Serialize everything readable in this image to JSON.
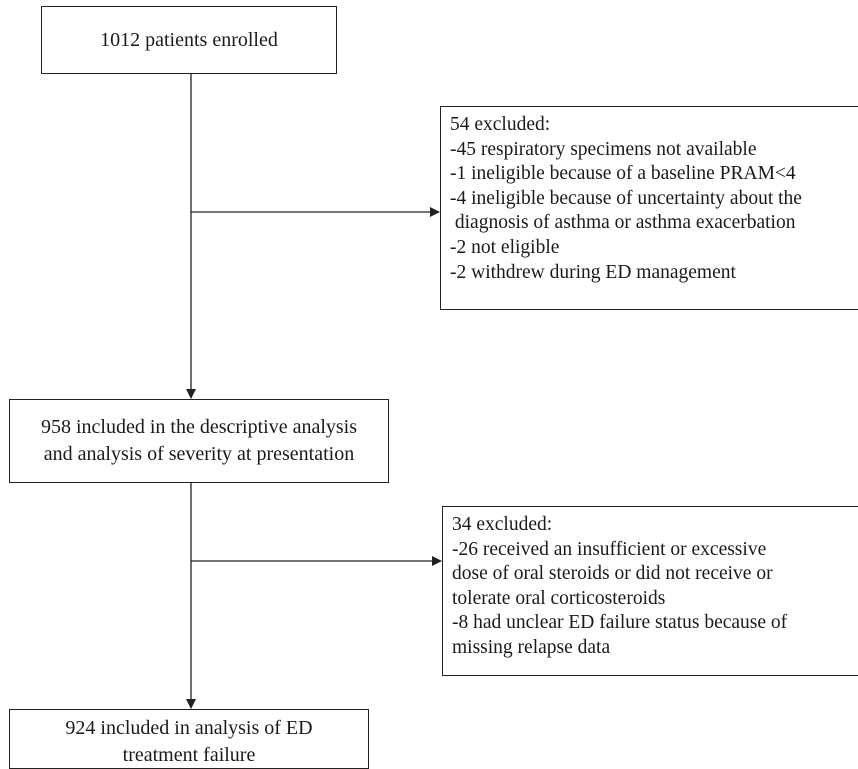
{
  "boxes": {
    "enrolled": {
      "lines": [
        "1012 patients enrolled"
      ]
    },
    "excluded_first": {
      "lines": [
        "54 excluded:",
        "-45 respiratory specimens not available",
        "-1 ineligible because of a baseline PRAM<4",
        "-4 ineligible because of uncertainty about the",
        " diagnosis of asthma or asthma exacerbation",
        "-2 not eligible",
        "-2 withdrew during ED management"
      ]
    },
    "descriptive": {
      "lines": [
        "958 included in the descriptive analysis",
        "and analysis of severity at presentation"
      ]
    },
    "excluded_second": {
      "lines": [
        "34 excluded:",
        "-26 received an insufficient or excessive",
        "dose of oral steroids or did not receive or",
        "tolerate oral corticosteroids",
        "-8 had unclear ED failure status because of",
        "missing relapse data"
      ]
    },
    "treatment_failure": {
      "lines": [
        "924 included in analysis of ED",
        "treatment failure"
      ]
    }
  },
  "colors": {
    "stroke": "#222222",
    "text": "#1a1a1a",
    "background": "#ffffff"
  }
}
